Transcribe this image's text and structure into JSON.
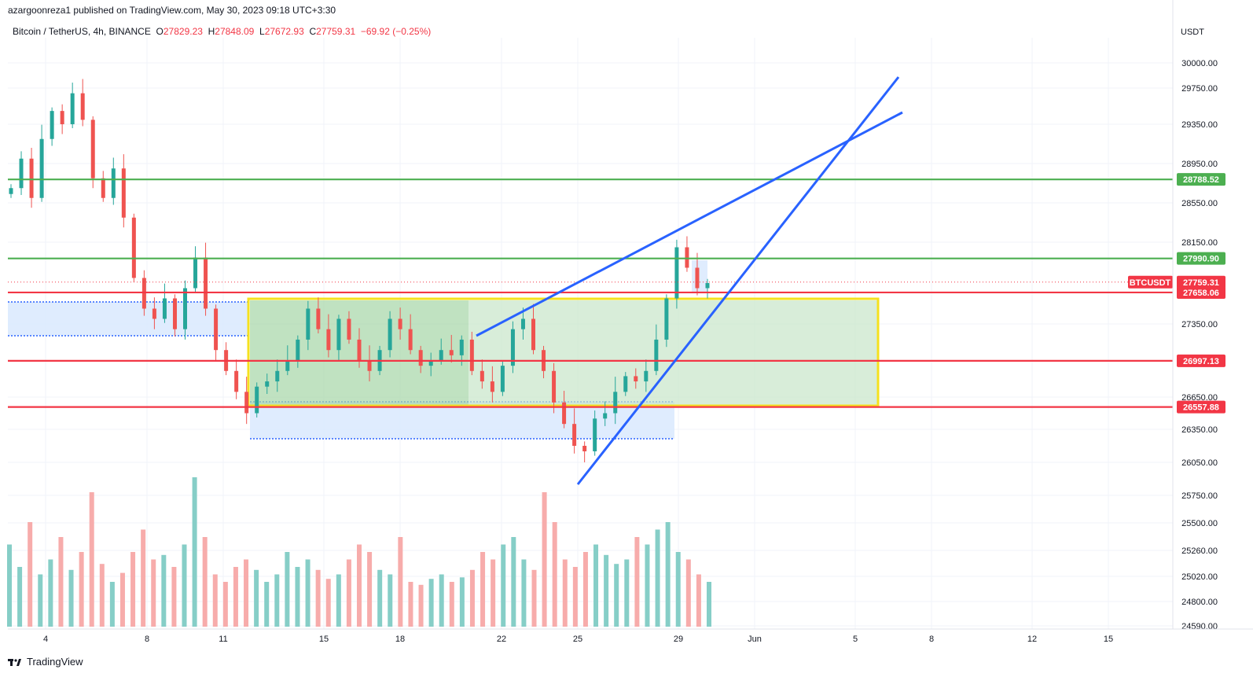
{
  "header": {
    "published": "azargoonreza1 published on TradingView.com, May 30, 2023 09:18 UTC+3:30",
    "symbol": "Bitcoin / TetherUS, 4h, BINANCE",
    "open_label": "O",
    "open": "27829.23",
    "high_label": "H",
    "high": "27848.09",
    "low_label": "L",
    "low": "27672.93",
    "close_label": "C",
    "close": "27759.31",
    "change": "−69.92 (−0.25%)"
  },
  "footer": {
    "brand": "TradingView"
  },
  "colors": {
    "bull": "#26a69a",
    "bear": "#ef5350",
    "support_red": "#f23645",
    "resistance_green": "#4caf50",
    "trendline_blue": "#2962ff",
    "box_yellow": "#f5e11e",
    "box_fill_green": "#c8e6c9",
    "range_fill_blue": "#dbeafe"
  },
  "chart_data": {
    "type": "candlestick",
    "symbol": "BTCUSDT",
    "quote_currency": "USDT",
    "y_ticks": [
      "30000.00",
      "29750.00",
      "29350.00",
      "28950.00",
      "28550.00",
      "28150.00",
      "27350.00",
      "26650.00",
      "26350.00",
      "26050.00",
      "25750.00",
      "25500.00",
      "25260.00",
      "25020.00",
      "24800.00",
      "24590.00"
    ],
    "x_ticks": [
      "4",
      "8",
      "11",
      "15",
      "18",
      "22",
      "25",
      "29",
      "Jun",
      "5",
      "8",
      "12",
      "15"
    ],
    "horizontal_levels": [
      {
        "price": "28788.52",
        "color": "green"
      },
      {
        "price": "27990.90",
        "color": "green"
      },
      {
        "price": "27658.06",
        "color": "red"
      },
      {
        "price": "26997.13",
        "color": "red"
      },
      {
        "price": "26557.88",
        "color": "red"
      }
    ],
    "last_price": {
      "label": "BTCUSDT",
      "price": "27759.31"
    },
    "candle_path": [
      28700,
      29000,
      28600,
      29200,
      29500,
      29350,
      29700,
      29400,
      28800,
      28600,
      28900,
      28400,
      27800,
      27500,
      27400,
      27600,
      27300,
      27700,
      28000,
      27500,
      27100,
      26900,
      26700,
      26500,
      26750,
      26800,
      26900,
      27000,
      27200,
      27500,
      27300,
      27100,
      27400,
      27200,
      27000,
      26900,
      27100,
      27400,
      27300,
      27100,
      26950,
      27000,
      27100,
      27050,
      27200,
      26900,
      26800,
      26700,
      26950,
      27300,
      27400,
      27100,
      26900,
      26600,
      26400,
      26200,
      26150,
      26450,
      26500,
      26700,
      26850,
      26800,
      26900,
      27200,
      27600,
      28100,
      27900,
      27700,
      27750
    ],
    "volume_path": [
      0.55,
      0.4,
      0.7,
      0.35,
      0.45,
      0.6,
      0.38,
      0.5,
      0.9,
      0.42,
      0.3,
      0.36,
      0.5,
      0.65,
      0.45,
      0.48,
      0.4,
      0.55,
      1.0,
      0.6,
      0.35,
      0.3,
      0.4,
      0.45,
      0.38,
      0.3,
      0.35,
      0.5,
      0.4,
      0.45,
      0.38,
      0.32,
      0.35,
      0.45,
      0.55,
      0.5,
      0.38,
      0.35,
      0.6,
      0.3,
      0.28,
      0.32,
      0.35,
      0.3,
      0.33,
      0.38,
      0.5,
      0.45,
      0.55,
      0.6,
      0.45,
      0.38,
      0.9,
      0.7,
      0.45,
      0.4,
      0.5,
      0.55,
      0.48,
      0.42,
      0.45,
      0.6,
      0.55,
      0.65,
      0.7,
      0.5,
      0.45,
      0.35,
      0.3
    ]
  }
}
